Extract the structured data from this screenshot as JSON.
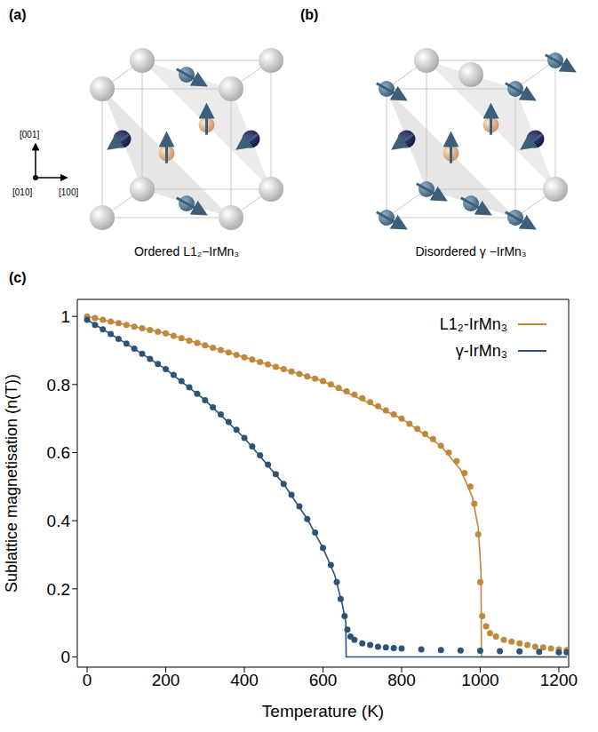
{
  "panels": [
    {
      "panel_label": "(a)",
      "caption": "Ordered L1₂−IrMn₃",
      "axis_labels": [
        "[001]",
        "[010]",
        "[100]"
      ]
    },
    {
      "panel_label": "(b)",
      "caption": "Disordered γ −IrMn₃"
    }
  ],
  "chart_data": {
    "panel_label": "(c)",
    "type": "scatter",
    "xlabel": "Temperature (K)",
    "ylabel": "Sublattice magnetisation (n(T))",
    "xlim": [
      -25,
      1225
    ],
    "ylim": [
      -0.03,
      1.05
    ],
    "xticks": [
      0,
      200,
      400,
      600,
      800,
      1000,
      1200
    ],
    "yticks": [
      0,
      0.2,
      0.4,
      0.6,
      0.8,
      1
    ],
    "legend": "upper right",
    "series": [
      {
        "name": "L1₂-IrMn₃",
        "color": "#c0883a",
        "marker": "circle",
        "x": [
          0,
          20,
          40,
          60,
          80,
          100,
          120,
          140,
          160,
          180,
          200,
          220,
          240,
          260,
          280,
          300,
          320,
          340,
          360,
          380,
          400,
          420,
          440,
          460,
          480,
          500,
          520,
          540,
          560,
          580,
          600,
          620,
          640,
          660,
          680,
          700,
          720,
          740,
          760,
          780,
          800,
          820,
          840,
          860,
          880,
          900,
          920,
          940,
          960,
          975,
          985,
          995,
          1000,
          1005,
          1015,
          1025,
          1040,
          1060,
          1080,
          1100,
          1120,
          1140,
          1160,
          1180,
          1200,
          1220
        ],
        "values": [
          1.0,
          0.995,
          0.99,
          0.985,
          0.98,
          0.975,
          0.97,
          0.965,
          0.96,
          0.955,
          0.95,
          0.943,
          0.936,
          0.929,
          0.922,
          0.915,
          0.908,
          0.901,
          0.894,
          0.887,
          0.88,
          0.873,
          0.866,
          0.859,
          0.852,
          0.845,
          0.838,
          0.831,
          0.824,
          0.817,
          0.81,
          0.8,
          0.79,
          0.78,
          0.77,
          0.76,
          0.748,
          0.736,
          0.724,
          0.712,
          0.7,
          0.685,
          0.67,
          0.655,
          0.64,
          0.62,
          0.6,
          0.575,
          0.54,
          0.5,
          0.45,
          0.36,
          0.22,
          0.12,
          0.09,
          0.07,
          0.06,
          0.05,
          0.045,
          0.04,
          0.035,
          0.03,
          0.028,
          0.025,
          0.022,
          0.02
        ],
        "fit": {
          "line_style": "solid",
          "x": [
            0,
            200,
            400,
            600,
            800,
            900,
            950,
            980,
            995,
            1002,
            1003,
            1220
          ],
          "values": [
            1.0,
            0.95,
            0.88,
            0.81,
            0.7,
            0.62,
            0.55,
            0.47,
            0.38,
            0.25,
            0,
            0
          ]
        }
      },
      {
        "name": "γ-IrMn₃",
        "color": "#2d5478",
        "marker": "circle",
        "x": [
          0,
          20,
          40,
          60,
          80,
          100,
          120,
          140,
          160,
          180,
          200,
          220,
          240,
          260,
          280,
          300,
          320,
          340,
          360,
          380,
          400,
          420,
          440,
          460,
          480,
          500,
          520,
          540,
          560,
          580,
          600,
          620,
          635,
          645,
          655,
          662,
          670,
          680,
          700,
          720,
          740,
          760,
          780,
          800,
          850,
          900,
          950,
          1000,
          1050,
          1100,
          1150,
          1200,
          1220
        ],
        "values": [
          0.99,
          0.975,
          0.962,
          0.948,
          0.934,
          0.92,
          0.905,
          0.89,
          0.875,
          0.86,
          0.845,
          0.828,
          0.81,
          0.792,
          0.773,
          0.754,
          0.733,
          0.712,
          0.69,
          0.667,
          0.643,
          0.618,
          0.592,
          0.565,
          0.537,
          0.508,
          0.476,
          0.442,
          0.405,
          0.365,
          0.32,
          0.27,
          0.22,
          0.17,
          0.12,
          0.08,
          0.06,
          0.05,
          0.04,
          0.035,
          0.03,
          0.028,
          0.026,
          0.025,
          0.022,
          0.02,
          0.019,
          0.018,
          0.017,
          0.016,
          0.015,
          0.014,
          0.014
        ],
        "fit": {
          "line_style": "solid",
          "x": [
            0,
            100,
            200,
            300,
            400,
            500,
            560,
            600,
            630,
            650,
            658,
            659,
            1220
          ],
          "values": [
            0.99,
            0.92,
            0.845,
            0.754,
            0.643,
            0.508,
            0.405,
            0.32,
            0.24,
            0.15,
            0.1,
            0,
            0
          ]
        }
      }
    ]
  }
}
